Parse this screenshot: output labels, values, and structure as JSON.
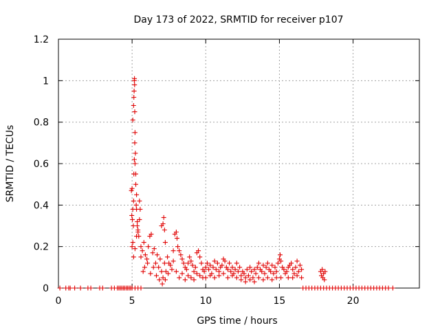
{
  "chart_data": {
    "type": "scatter",
    "title": "Day 173 of 2022, SRMTID for receiver p107",
    "xlabel": "GPS time / hours",
    "ylabel": "SRMTID / TECUs",
    "xlim": [
      0,
      24.5
    ],
    "ylim": [
      0,
      1.2
    ],
    "xticks": [
      0,
      5,
      10,
      15,
      20
    ],
    "yticks": [
      0,
      0.2,
      0.4,
      0.6,
      0.8,
      1,
      1.2
    ],
    "xtick_labels": [
      "0",
      "5",
      "10",
      "15",
      "20"
    ],
    "ytick_labels": [
      "0",
      "0.2",
      "0.4",
      "0.6",
      "0.8",
      "1",
      "1.2"
    ],
    "grid": true,
    "marker": "+",
    "series": [
      {
        "name": "p107",
        "color": "#e00000",
        "points": [
          [
            0.1,
            0
          ],
          [
            0.5,
            0
          ],
          [
            0.7,
            0
          ],
          [
            0.8,
            0
          ],
          [
            1.1,
            0
          ],
          [
            1.5,
            0
          ],
          [
            2.0,
            0
          ],
          [
            2.2,
            0
          ],
          [
            2.8,
            0
          ],
          [
            3.0,
            0
          ],
          [
            3.6,
            0
          ],
          [
            3.8,
            0
          ],
          [
            4.0,
            0
          ],
          [
            4.1,
            0
          ],
          [
            4.2,
            0
          ],
          [
            4.3,
            0
          ],
          [
            4.4,
            0
          ],
          [
            4.5,
            0
          ],
          [
            4.6,
            0
          ],
          [
            4.7,
            0
          ],
          [
            4.8,
            0
          ],
          [
            4.9,
            0
          ],
          [
            5.0,
            0
          ],
          [
            5.2,
            0
          ],
          [
            5.4,
            0
          ],
          [
            5.6,
            0
          ],
          [
            4.95,
            0.47
          ],
          [
            5.0,
            0.48
          ],
          [
            4.98,
            0.35
          ],
          [
            5.02,
            0.33
          ],
          [
            5.05,
            0.38
          ],
          [
            5.1,
            0.42
          ],
          [
            5.08,
            0.3
          ],
          [
            5.12,
            0.55
          ],
          [
            5.15,
            0.62
          ],
          [
            5.18,
            0.7
          ],
          [
            5.2,
            0.75
          ],
          [
            5.22,
            0.65
          ],
          [
            5.25,
            0.5
          ],
          [
            5.28,
            0.4
          ],
          [
            5.3,
            0.38
          ],
          [
            5.35,
            0.3
          ],
          [
            5.4,
            0.28
          ],
          [
            5.45,
            0.25
          ],
          [
            5.5,
            0.42
          ],
          [
            5.05,
            0.81
          ],
          [
            5.1,
            0.88
          ],
          [
            5.12,
            0.92
          ],
          [
            5.14,
            0.95
          ],
          [
            5.15,
            1.0
          ],
          [
            5.17,
            0.98
          ],
          [
            5.16,
            1.01
          ],
          [
            5.18,
            0.85
          ],
          [
            5.2,
            0.6
          ],
          [
            5.25,
            0.55
          ],
          [
            5.3,
            0.45
          ],
          [
            5.0,
            0.2
          ],
          [
            5.05,
            0.22
          ],
          [
            5.1,
            0.15
          ],
          [
            5.2,
            0.19
          ],
          [
            5.3,
            0.25
          ],
          [
            5.35,
            0.32
          ],
          [
            5.4,
            0.27
          ],
          [
            5.5,
            0.33
          ],
          [
            5.55,
            0.38
          ],
          [
            5.6,
            0.2
          ],
          [
            5.6,
            0.15
          ],
          [
            5.7,
            0.18
          ],
          [
            5.8,
            0.22
          ],
          [
            5.9,
            0.16
          ],
          [
            6.0,
            0.14
          ],
          [
            6.1,
            0.2
          ],
          [
            6.2,
            0.25
          ],
          [
            6.3,
            0.26
          ],
          [
            6.4,
            0.17
          ],
          [
            6.5,
            0.19
          ],
          [
            6.6,
            0.12
          ],
          [
            6.7,
            0.16
          ],
          [
            6.8,
            0.1
          ],
          [
            6.9,
            0.14
          ],
          [
            7.0,
            0.08
          ],
          [
            7.1,
            0.05
          ],
          [
            7.2,
            0.12
          ],
          [
            7.3,
            0.08
          ],
          [
            7.4,
            0.15
          ],
          [
            7.5,
            0.12
          ],
          [
            7.6,
            0.11
          ],
          [
            7.7,
            0.09
          ],
          [
            7.8,
            0.13
          ],
          [
            5.75,
            0.08
          ],
          [
            5.85,
            0.1
          ],
          [
            6.05,
            0.12
          ],
          [
            6.25,
            0.07
          ],
          [
            6.45,
            0.1
          ],
          [
            6.65,
            0.06
          ],
          [
            6.85,
            0.04
          ],
          [
            7.05,
            0.02
          ],
          [
            7.25,
            0.04
          ],
          [
            7.45,
            0.07
          ],
          [
            7.0,
            0.3
          ],
          [
            7.1,
            0.31
          ],
          [
            7.15,
            0.34
          ],
          [
            7.2,
            0.28
          ],
          [
            7.25,
            0.22
          ],
          [
            7.8,
            0.18
          ],
          [
            7.9,
            0.26
          ],
          [
            8.0,
            0.27
          ],
          [
            8.05,
            0.24
          ],
          [
            8.1,
            0.2
          ],
          [
            8.2,
            0.18
          ],
          [
            8.3,
            0.16
          ],
          [
            8.4,
            0.14
          ],
          [
            8.5,
            0.12
          ],
          [
            8.6,
            0.1
          ],
          [
            8.7,
            0.09
          ],
          [
            8.8,
            0.12
          ],
          [
            8.9,
            0.15
          ],
          [
            9.0,
            0.13
          ],
          [
            9.1,
            0.11
          ],
          [
            9.2,
            0.08
          ],
          [
            9.3,
            0.1
          ],
          [
            9.4,
            0.17
          ],
          [
            9.5,
            0.18
          ],
          [
            9.6,
            0.15
          ],
          [
            9.7,
            0.12
          ],
          [
            9.8,
            0.09
          ],
          [
            8.0,
            0.08
          ],
          [
            8.2,
            0.05
          ],
          [
            8.4,
            0.07
          ],
          [
            8.6,
            0.04
          ],
          [
            8.8,
            0.06
          ],
          [
            9.0,
            0.05
          ],
          [
            9.2,
            0.04
          ],
          [
            9.4,
            0.07
          ],
          [
            9.6,
            0.06
          ],
          [
            9.8,
            0.05
          ],
          [
            9.9,
            0.08
          ],
          [
            10.0,
            0.1
          ],
          [
            10.1,
            0.12
          ],
          [
            10.2,
            0.09
          ],
          [
            10.3,
            0.11
          ],
          [
            10.4,
            0.07
          ],
          [
            10.5,
            0.1
          ],
          [
            10.6,
            0.13
          ],
          [
            10.7,
            0.09
          ],
          [
            10.8,
            0.12
          ],
          [
            10.9,
            0.08
          ],
          [
            11.0,
            0.1
          ],
          [
            11.1,
            0.11
          ],
          [
            11.2,
            0.14
          ],
          [
            11.3,
            0.13
          ],
          [
            11.4,
            0.1
          ],
          [
            11.5,
            0.09
          ],
          [
            11.6,
            0.12
          ],
          [
            11.7,
            0.08
          ],
          [
            11.8,
            0.1
          ],
          [
            11.9,
            0.07
          ],
          [
            12.0,
            0.09
          ],
          [
            12.1,
            0.12
          ],
          [
            12.2,
            0.08
          ],
          [
            12.3,
            0.1
          ],
          [
            12.4,
            0.06
          ],
          [
            12.5,
            0.08
          ],
          [
            10.0,
            0.05
          ],
          [
            10.3,
            0.06
          ],
          [
            10.6,
            0.05
          ],
          [
            10.9,
            0.06
          ],
          [
            11.2,
            0.07
          ],
          [
            11.5,
            0.05
          ],
          [
            11.8,
            0.06
          ],
          [
            12.1,
            0.05
          ],
          [
            12.4,
            0.04
          ],
          [
            12.6,
            0.07
          ],
          [
            12.7,
            0.05
          ],
          [
            12.8,
            0.09
          ],
          [
            12.9,
            0.06
          ],
          [
            13.0,
            0.1
          ],
          [
            13.1,
            0.08
          ],
          [
            13.2,
            0.05
          ],
          [
            13.3,
            0.09
          ],
          [
            13.4,
            0.07
          ],
          [
            13.5,
            0.1
          ],
          [
            13.6,
            0.12
          ],
          [
            13.7,
            0.09
          ],
          [
            13.8,
            0.08
          ],
          [
            13.9,
            0.11
          ],
          [
            14.0,
            0.07
          ],
          [
            14.1,
            0.1
          ],
          [
            14.2,
            0.12
          ],
          [
            14.3,
            0.09
          ],
          [
            14.4,
            0.08
          ],
          [
            14.5,
            0.11
          ],
          [
            14.6,
            0.07
          ],
          [
            14.7,
            0.1
          ],
          [
            14.8,
            0.08
          ],
          [
            14.9,
            0.12
          ],
          [
            15.0,
            0.14
          ],
          [
            15.05,
            0.16
          ],
          [
            15.1,
            0.13
          ],
          [
            15.2,
            0.1
          ],
          [
            15.3,
            0.09
          ],
          [
            15.4,
            0.07
          ],
          [
            12.7,
            0.03
          ],
          [
            13.0,
            0.04
          ],
          [
            13.3,
            0.03
          ],
          [
            13.6,
            0.05
          ],
          [
            13.9,
            0.04
          ],
          [
            14.2,
            0.05
          ],
          [
            14.5,
            0.04
          ],
          [
            14.8,
            0.05
          ],
          [
            15.1,
            0.05
          ],
          [
            15.5,
            0.08
          ],
          [
            15.6,
            0.1
          ],
          [
            15.7,
            0.11
          ],
          [
            15.8,
            0.12
          ],
          [
            15.9,
            0.09
          ],
          [
            16.0,
            0.07
          ],
          [
            16.1,
            0.1
          ],
          [
            16.2,
            0.13
          ],
          [
            16.3,
            0.08
          ],
          [
            16.4,
            0.11
          ],
          [
            16.5,
            0.09
          ],
          [
            15.6,
            0.05
          ],
          [
            15.9,
            0.05
          ],
          [
            16.2,
            0.06
          ],
          [
            16.5,
            0.05
          ],
          [
            16.6,
            0
          ],
          [
            16.8,
            0
          ],
          [
            17.0,
            0
          ],
          [
            17.2,
            0
          ],
          [
            17.4,
            0
          ],
          [
            17.6,
            0
          ],
          [
            17.8,
            0
          ],
          [
            18.0,
            0
          ],
          [
            17.8,
            0.08
          ],
          [
            17.85,
            0.06
          ],
          [
            17.9,
            0.09
          ],
          [
            17.95,
            0.05
          ],
          [
            18.0,
            0.07
          ],
          [
            18.05,
            0.04
          ],
          [
            18.1,
            0.08
          ],
          [
            18.2,
            0
          ],
          [
            18.4,
            0
          ],
          [
            18.6,
            0
          ],
          [
            18.8,
            0
          ],
          [
            19.0,
            0
          ],
          [
            19.2,
            0
          ],
          [
            19.4,
            0
          ],
          [
            19.6,
            0
          ],
          [
            19.8,
            0
          ],
          [
            20.0,
            0
          ],
          [
            20.2,
            0
          ],
          [
            20.4,
            0
          ],
          [
            20.6,
            0
          ],
          [
            20.8,
            0
          ],
          [
            21.0,
            0
          ],
          [
            21.2,
            0
          ],
          [
            21.4,
            0
          ],
          [
            21.6,
            0
          ],
          [
            21.8,
            0
          ],
          [
            22.0,
            0
          ],
          [
            22.2,
            0
          ],
          [
            22.4,
            0
          ],
          [
            22.7,
            0
          ]
        ]
      }
    ]
  }
}
